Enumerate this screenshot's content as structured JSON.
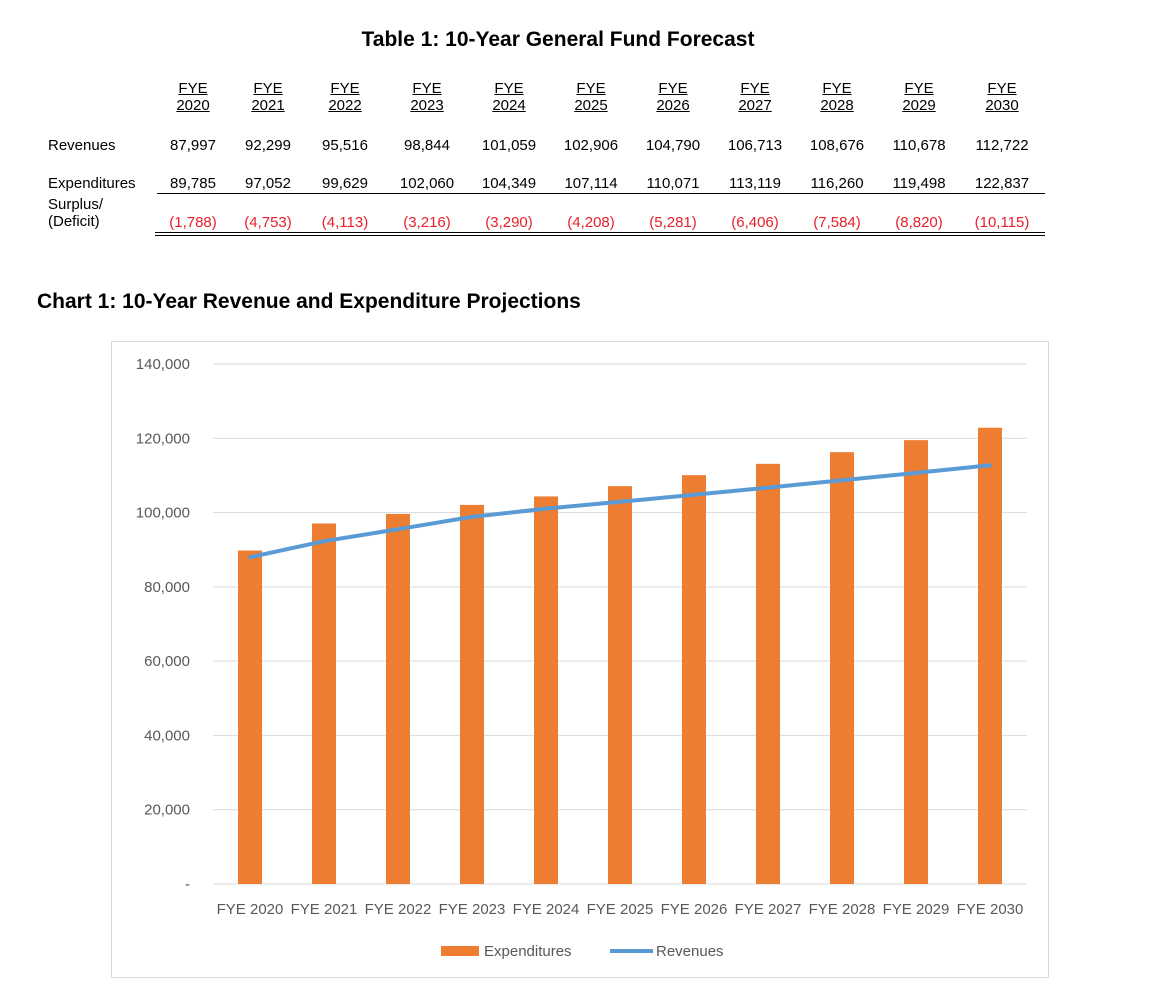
{
  "table": {
    "title": "Table 1: 10-Year General Fund Forecast",
    "years": [
      {
        "prefix": "FYE",
        "year": "2020"
      },
      {
        "prefix": "FYE",
        "year": "2021"
      },
      {
        "prefix": "FYE",
        "year": "2022"
      },
      {
        "prefix": "FYE",
        "year": "2023"
      },
      {
        "prefix": "FYE",
        "year": "2024"
      },
      {
        "prefix": "FYE",
        "year": "2025"
      },
      {
        "prefix": "FYE",
        "year": "2026"
      },
      {
        "prefix": "FYE",
        "year": "2027"
      },
      {
        "prefix": "FYE",
        "year": "2028"
      },
      {
        "prefix": "FYE",
        "year": "2029"
      },
      {
        "prefix": "FYE",
        "year": "2030"
      }
    ],
    "rows": [
      {
        "label": "Revenues",
        "values": [
          "87,997",
          "92,299",
          "95,516",
          "98,844",
          "101,059",
          "102,906",
          "104,790",
          "106,713",
          "108,676",
          "110,678",
          "112,722"
        ]
      },
      {
        "label": "Expenditures",
        "values": [
          "89,785",
          "97,052",
          "99,629",
          "102,060",
          "104,349",
          "107,114",
          "110,071",
          "113,119",
          "116,260",
          "119,498",
          "122,837"
        ]
      },
      {
        "label_line1": "Surplus/",
        "label_line2": "(Deficit)",
        "values": [
          "(1,788)",
          "(4,753)",
          "(4,113)",
          "(3,216)",
          "(3,290)",
          "(4,208)",
          "(5,281)",
          "(6,406)",
          "(7,584)",
          "(8,820)",
          "(10,115)"
        ]
      }
    ],
    "negative_color": "#e8202a"
  },
  "chart_title": "Chart 1: 10-Year Revenue and Expenditure Projections",
  "chart_data": {
    "type": "bar",
    "title": "Chart 1: 10-Year Revenue and Expenditure Projections",
    "categories": [
      "FYE 2020",
      "FYE 2021",
      "FYE 2022",
      "FYE 2023",
      "FYE 2024",
      "FYE 2025",
      "FYE 2026",
      "FYE 2027",
      "FYE 2028",
      "FYE 2029",
      "FYE 2030"
    ],
    "series": [
      {
        "name": "Expenditures",
        "kind": "bar",
        "color": "#ed7d31",
        "values": [
          89785,
          97052,
          99629,
          102060,
          104349,
          107114,
          110071,
          113119,
          116260,
          119498,
          122837
        ]
      },
      {
        "name": "Revenues",
        "kind": "line",
        "color": "#5b9bd5",
        "values": [
          87997,
          92299,
          95516,
          98844,
          101059,
          102906,
          104790,
          106713,
          108676,
          110678,
          112722
        ]
      }
    ],
    "yticks": [
      0,
      20000,
      40000,
      60000,
      80000,
      100000,
      120000,
      140000
    ],
    "ytick_labels": [
      "-",
      "20,000",
      "40,000",
      "60,000",
      "80,000",
      "100,000",
      "120,000",
      "140,000"
    ],
    "ylim": [
      0,
      140000
    ],
    "xlabel": "",
    "ylabel": "",
    "grid": true,
    "legend": "bottom"
  }
}
